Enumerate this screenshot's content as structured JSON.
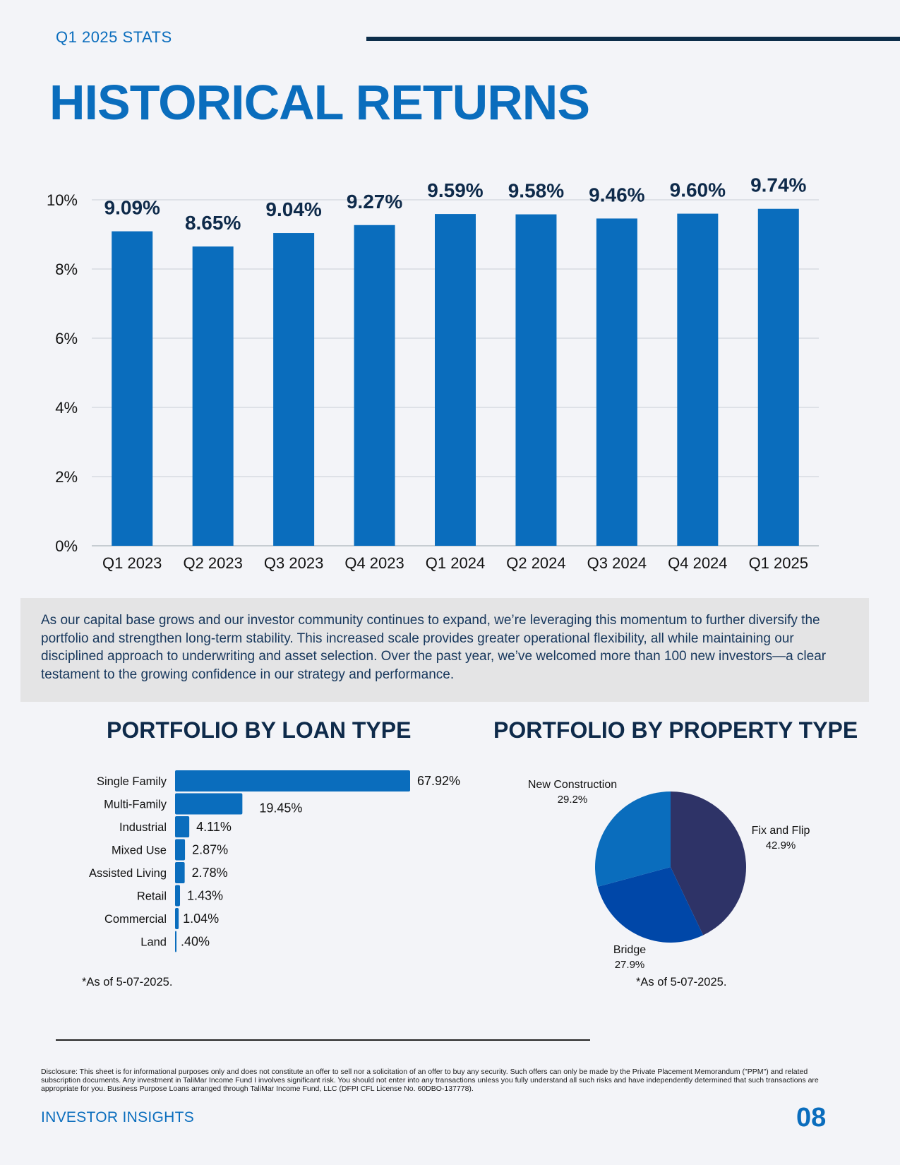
{
  "header": {
    "label": "Q1 2025 STATS",
    "title": "HISTORICAL RETURNS"
  },
  "chart_data": [
    {
      "type": "bar",
      "title": "HISTORICAL RETURNS",
      "categories": [
        "Q1 2023",
        "Q2 2023",
        "Q3 2023",
        "Q4 2023",
        "Q1 2024",
        "Q2 2024",
        "Q3 2024",
        "Q4 2024",
        "Q1 2025"
      ],
      "values": [
        9.09,
        8.65,
        9.04,
        9.27,
        9.59,
        9.58,
        9.46,
        9.6,
        9.74
      ],
      "value_labels": [
        "9.09%",
        "8.65%",
        "9.04%",
        "9.27%",
        "9.59%",
        "9.58%",
        "9.46%",
        "9.60%",
        "9.74%"
      ],
      "yticks": [
        "0%",
        "2%",
        "4%",
        "6%",
        "8%",
        "10%"
      ],
      "ylim": [
        0,
        10
      ],
      "grid": true,
      "color": "#0a6dbd"
    },
    {
      "type": "bar",
      "orientation": "horizontal",
      "title": "PORTFOLIO BY LOAN TYPE",
      "categories": [
        "Single Family",
        "Multi-Family",
        "Industrial",
        "Mixed Use",
        "Assisted Living",
        "Retail",
        "Commercial",
        "Land"
      ],
      "values": [
        67.92,
        19.45,
        4.11,
        2.87,
        2.78,
        1.43,
        1.04,
        0.4
      ],
      "value_labels": [
        "67.92%",
        "19.45%",
        "4.11%",
        "2.87%",
        "2.78%",
        "1.43%",
        "1.04%",
        ".40%"
      ],
      "color": "#0a6dbd"
    },
    {
      "type": "pie",
      "title": "PORTFOLIO BY PROPERTY TYPE",
      "slices": [
        {
          "name": "Fix and Flip",
          "value": 42.9,
          "label": "42.9%",
          "color": "#2e3367"
        },
        {
          "name": "Bridge",
          "value": 27.9,
          "label": "27.9%",
          "color": "#0047a8"
        },
        {
          "name": "New Construction",
          "value": 29.2,
          "label": "29.2%",
          "color": "#0a6dbd"
        }
      ]
    }
  ],
  "summary": "As our capital base grows and our investor community continues to expand, we’re leveraging this momentum to further diversify the portfolio and strengthen long-term stability. This increased scale provides greater operational flexibility, all while maintaining our disciplined approach to underwriting and asset selection. Over the past year, we’ve welcomed more than 100 new investors—a clear testament to the growing confidence in our strategy and performance.",
  "loan_section": {
    "title": "PORTFOLIO BY LOAN TYPE",
    "as_of": "*As of 5-07-2025."
  },
  "property_section": {
    "title": "PORTFOLIO BY PROPERTY TYPE",
    "as_of": "*As of 5-07-2025."
  },
  "footer": {
    "disclosure": "Disclosure: This sheet is for informational purposes only and does not constitute an offer to sell nor a solicitation of an offer to buy any security. Such offers can only be made by the Private Placement Memorandum (\"PPM\") and related subscription documents. Any investment in TaliMar Income Fund I involves significant risk. You should not enter into any transactions unless you fully understand all such risks and have independently determined that such transactions are appropriate for you. Business Purpose Loans arranged through TaliMar Income Fund, LLC (DFPI CFL License No. 60DBO-137778).",
    "label": "INVESTOR INSIGHTS",
    "page_number": "08"
  }
}
